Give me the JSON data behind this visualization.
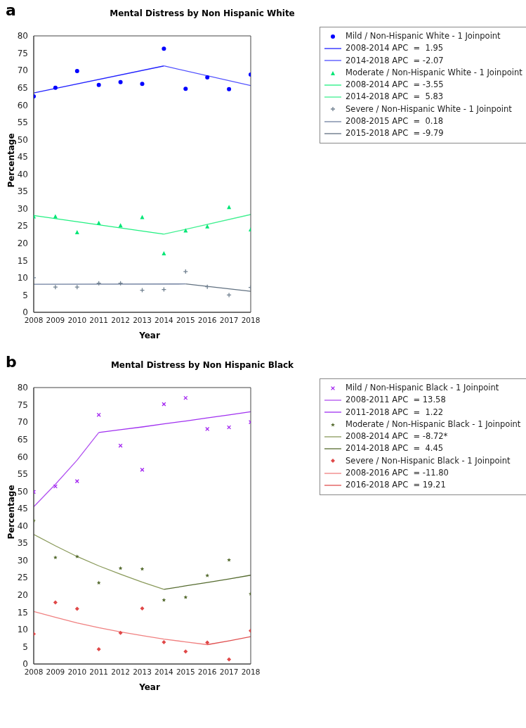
{
  "chart_data": [
    {
      "type": "scatter",
      "title": "Mental Distress by Non Hispanic White",
      "annotations": [
        "a"
      ],
      "xlabel": "Year",
      "ylabel": "Percentage",
      "xlim": [
        2008,
        2018
      ],
      "xticks": [
        2008,
        2009,
        2010,
        2011,
        2012,
        2013,
        2014,
        2015,
        2016,
        2017,
        2018
      ],
      "ylim": [
        0,
        80
      ],
      "yticks": [
        0,
        5,
        10,
        15,
        20,
        25,
        30,
        35,
        40,
        45,
        50,
        55,
        60,
        65,
        70,
        75,
        80
      ],
      "grid": false,
      "legend": "right",
      "x": [
        2008,
        2009,
        2010,
        2011,
        2012,
        2013,
        2014,
        2015,
        2016,
        2017,
        2018
      ],
      "series": [
        {
          "name": "Mild / Non-Hispanic White - 1 Joinpoint",
          "marker": "circle",
          "color": "#0000ff",
          "values": [
            62.5,
            65,
            69.8,
            65.8,
            66.6,
            66.1,
            76.3,
            64.7,
            68,
            64.6,
            68.8
          ]
        },
        {
          "name": "2008-2014 APC  =  1.95",
          "type": "line",
          "marker": "none",
          "color": "#2020ff",
          "x": [
            2008,
            2014
          ],
          "values": [
            63.5,
            71.3
          ]
        },
        {
          "name": "2014-2018 APC  = -2.07",
          "type": "line",
          "marker": "none",
          "color": "#5050ff",
          "x": [
            2014,
            2018
          ],
          "values": [
            71.3,
            65.6
          ]
        },
        {
          "name": "Moderate / Non-Hispanic White - 1 Joinpoint",
          "marker": "triangle",
          "color": "#00e676",
          "values": [
            27.8,
            27.8,
            23.2,
            25.9,
            25.2,
            27.6,
            17.1,
            23.7,
            24.9,
            30.5,
            24
          ]
        },
        {
          "name": "2008-2014 APC  = -3.55",
          "type": "line",
          "marker": "none",
          "color": "#20f080",
          "x": [
            2008,
            2014
          ],
          "values": [
            28,
            22.6
          ]
        },
        {
          "name": "2014-2018 APC  =  5.83",
          "type": "line",
          "marker": "none",
          "color": "#40f090",
          "x": [
            2014,
            2018
          ],
          "values": [
            22.6,
            28.3
          ]
        },
        {
          "name": "Severe / Non-Hispanic White - 1 Joinpoint",
          "marker": "cross",
          "color": "#708090",
          "values": [
            10,
            7.3,
            7.3,
            8.4,
            8.4,
            6.4,
            6.6,
            11.8,
            7.4,
            5,
            7.2
          ]
        },
        {
          "name": "2008-2015 APC  =  0.18",
          "type": "line",
          "marker": "none",
          "color": "#7080a0",
          "x": [
            2008,
            2015
          ],
          "values": [
            8.1,
            8.2
          ]
        },
        {
          "name": "2015-2018 APC  = -9.79",
          "type": "line",
          "marker": "none",
          "color": "#607080",
          "x": [
            2015,
            2018
          ],
          "values": [
            8.2,
            6.1
          ]
        }
      ]
    },
    {
      "type": "scatter",
      "title": "Mental Distress by Non Hispanic Black",
      "annotations": [
        "b"
      ],
      "xlabel": "Year",
      "ylabel": "Percentage",
      "xlim": [
        2008,
        2018
      ],
      "xticks": [
        2008,
        2009,
        2010,
        2011,
        2012,
        2013,
        2014,
        2015,
        2016,
        2017,
        2018
      ],
      "ylim": [
        0,
        80
      ],
      "yticks": [
        0,
        5,
        10,
        15,
        20,
        25,
        30,
        35,
        40,
        45,
        50,
        55,
        60,
        65,
        70,
        75,
        80
      ],
      "grid": false,
      "legend": "right",
      "x": [
        2008,
        2009,
        2010,
        2011,
        2012,
        2013,
        2014,
        2015,
        2016,
        2017,
        2018
      ],
      "series": [
        {
          "name": "Mild / Non-Hispanic Black - 1 Joinpoint",
          "marker": "x",
          "color": "#a020f0",
          "values": [
            49.8,
            51.4,
            52.9,
            72.1,
            63.2,
            56.2,
            75.2,
            77,
            68,
            68.5,
            70
          ]
        },
        {
          "name": "2008-2011 APC  = 13.58",
          "type": "line",
          "marker": "none",
          "color": "#b050f0",
          "x": [
            2008,
            2009,
            2010,
            2011
          ],
          "values": [
            45.5,
            52,
            59,
            67
          ]
        },
        {
          "name": "2011-2018 APC  =  1.22",
          "type": "line",
          "marker": "none",
          "color": "#a030f0",
          "x": [
            2011,
            2012,
            2013,
            2014,
            2015,
            2016,
            2017,
            2018
          ],
          "values": [
            67,
            67.8,
            68.6,
            69.5,
            70.3,
            71.2,
            72.1,
            73
          ]
        },
        {
          "name": "Moderate / Non-Hispanic Black - 1 Joinpoint",
          "marker": "star",
          "color": "#556b2f",
          "values": [
            41.5,
            30.8,
            31.1,
            23.5,
            27.7,
            27.5,
            18.5,
            19.3,
            25.6,
            30.1,
            20.3
          ]
        },
        {
          "name": "2008-2014 APC  = -8.72*",
          "type": "line",
          "marker": "none",
          "color": "#8a9a5b",
          "x": [
            2008,
            2009,
            2010,
            2011,
            2012,
            2013,
            2014
          ],
          "values": [
            37.5,
            34.2,
            31.1,
            28.4,
            26,
            23.7,
            21.6
          ]
        },
        {
          "name": "2014-2018 APC  =  4.45",
          "type": "line",
          "marker": "none",
          "color": "#556b2f",
          "x": [
            2014,
            2015,
            2016,
            2017,
            2018
          ],
          "values": [
            21.6,
            22.6,
            23.6,
            24.6,
            25.7
          ]
        },
        {
          "name": "Severe / Non-Hispanic Black - 1 Joinpoint",
          "marker": "diamond",
          "color": "#e04848",
          "values": [
            8.7,
            17.8,
            16,
            4.3,
            9,
            16.1,
            6.3,
            3.6,
            6.2,
            1.3,
            9.6
          ]
        },
        {
          "name": "2008-2016 APC  = -11.80",
          "type": "line",
          "marker": "none",
          "color": "#f08080",
          "x": [
            2008,
            2009,
            2010,
            2011,
            2012,
            2013,
            2014,
            2015,
            2016
          ],
          "values": [
            15.2,
            13.5,
            11.9,
            10.5,
            9.3,
            8.2,
            7.2,
            6.4,
            5.6
          ]
        },
        {
          "name": "2016-2018 APC  = 19.21",
          "type": "line",
          "marker": "none",
          "color": "#e05050",
          "x": [
            2016,
            2017,
            2018
          ],
          "values": [
            5.6,
            6.7,
            7.9
          ]
        }
      ]
    }
  ]
}
